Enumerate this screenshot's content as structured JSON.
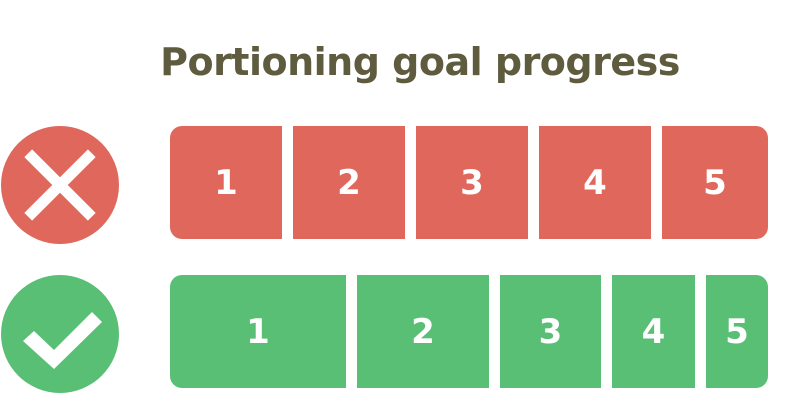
{
  "title": "Portioning goal progress",
  "colors": {
    "bad": "#e0675c",
    "good": "#59bf75",
    "title": "#5f5b3f"
  },
  "rows": [
    {
      "status_icon": "x-icon",
      "segments": [
        "1",
        "2",
        "3",
        "4",
        "5"
      ]
    },
    {
      "status_icon": "check-icon",
      "segments": [
        "1",
        "2",
        "3",
        "4",
        "5"
      ]
    }
  ]
}
